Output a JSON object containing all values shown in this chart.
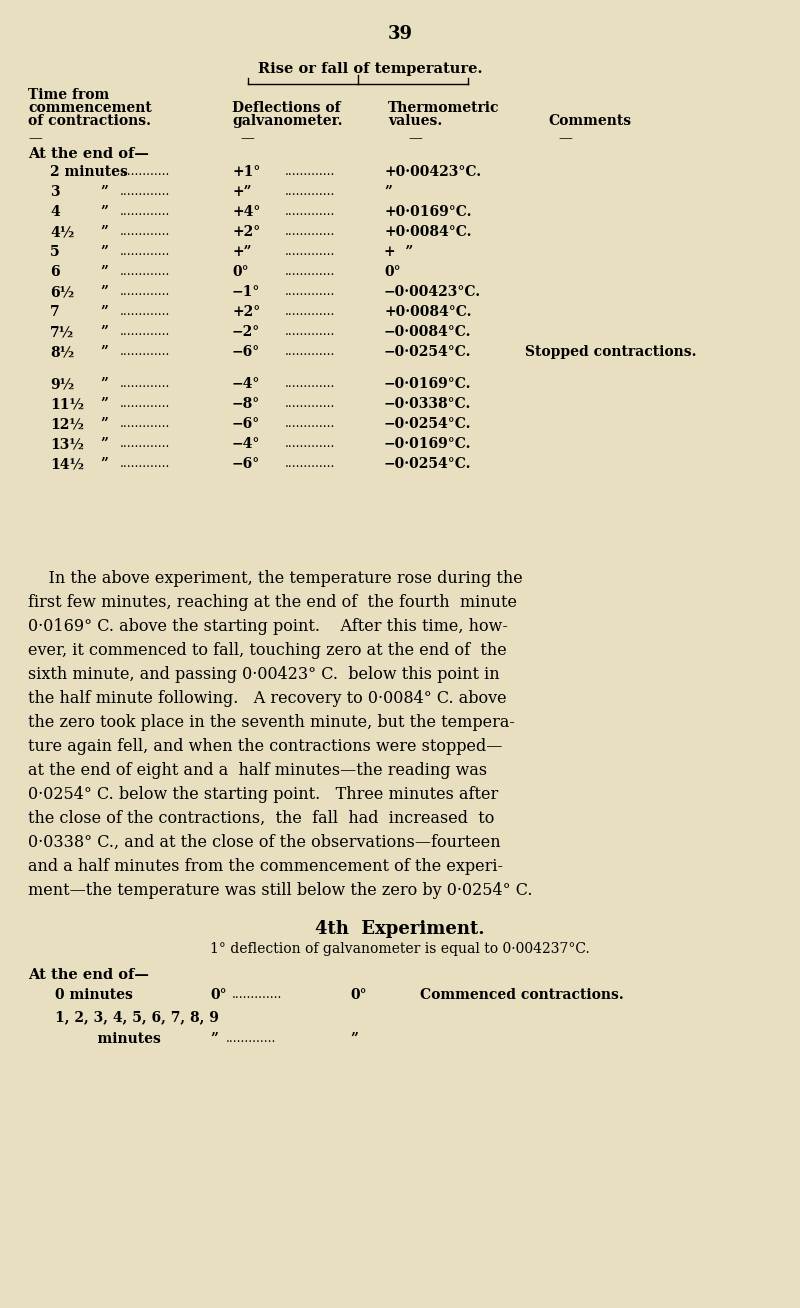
{
  "bg_color": "#e8dfc0",
  "page_number": "39",
  "title_rise_fall": "Rise or fall of temperature.",
  "col1_header_lines": [
    "Time from",
    "commencement",
    "of contractions."
  ],
  "col2_header_lines": [
    "Deflections of",
    "galvanometer."
  ],
  "col3_header_lines": [
    "Thermometric",
    "values."
  ],
  "col4_header": "Comments",
  "at_end_of": "At the end of—",
  "table_rows": [
    {
      "time": "2 minutes",
      "unit": "",
      "defl": "+1°",
      "thermo": "+0·00423°C.",
      "comment": ""
    },
    {
      "time": "3",
      "unit": "”",
      "defl": "+”",
      "thermo": "”",
      "comment": ""
    },
    {
      "time": "4",
      "unit": "”",
      "defl": "+4°",
      "thermo": "+0·0169°C.",
      "comment": ""
    },
    {
      "time": "4½",
      "unit": "”",
      "defl": "+2°",
      "thermo": "+0·0084°C.",
      "comment": ""
    },
    {
      "time": "5",
      "unit": "”",
      "defl": "+”",
      "thermo": "+  ”",
      "comment": ""
    },
    {
      "time": "6",
      "unit": "”",
      "defl": "0°",
      "thermo": "0°",
      "comment": ""
    },
    {
      "time": "6½",
      "unit": "”",
      "defl": "−1°",
      "thermo": "−0·00423°C.",
      "comment": ""
    },
    {
      "time": "7",
      "unit": "”",
      "defl": "+2°",
      "thermo": "+0·0084°C.",
      "comment": ""
    },
    {
      "time": "7½",
      "unit": "”",
      "defl": "−2°",
      "thermo": "−0·0084°C.",
      "comment": ""
    },
    {
      "time": "8½",
      "unit": "”",
      "defl": "−6°",
      "thermo": "−0·0254°C.",
      "comment": "Stopped contractions."
    },
    {
      "time": "9½",
      "unit": "”",
      "defl": "−4°",
      "thermo": "−0·0169°C.",
      "comment": "",
      "gap": true
    },
    {
      "time": "11½",
      "unit": "”",
      "defl": "−8°",
      "thermo": "−0·0338°C.",
      "comment": ""
    },
    {
      "time": "12½",
      "unit": "”",
      "defl": "−6°",
      "thermo": "−0·0254°C.",
      "comment": ""
    },
    {
      "time": "13½",
      "unit": "”",
      "defl": "−4°",
      "thermo": "−0·0169°C.",
      "comment": ""
    },
    {
      "time": "14½",
      "unit": "”",
      "defl": "−6°",
      "thermo": "−0·0254°C.",
      "comment": ""
    }
  ],
  "paragraph_lines": [
    "    In the above experiment, the temperature rose during the",
    "first few minutes, reaching at the end of  the fourth  minute",
    "0·0169° C. above the starting point.    After this time, how-",
    "ever, it commenced to fall, touching zero at the end of  the",
    "sixth minute, and passing 0·00423° C.  below this point in",
    "the half minute following.   A recovery to 0·0084° C. above",
    "the zero took place in the seventh minute, but the tempera-",
    "ture again fell, and when the contractions were stopped—",
    "at the end of eight and a  half minutes—the reading was",
    "0·0254° C. below the starting point.   Three minutes after",
    "the close of the contractions,  the  fall  had  increased  to",
    "0·0338° C., and at the close of the observations—fourteen",
    "and a half minutes from the commencement of the experi-",
    "ment—the temperature was still below the zero by 0·0254° C."
  ],
  "fourth_exp_title": "4th  Experiment.",
  "fourth_exp_subtitle": "1° deflection of galvanometer is equal to 0·004237°C.",
  "fourth_at_end": "At the end of—",
  "fourth_row1_time": "0 minutes",
  "fourth_row1_defl": "0°",
  "fourth_row1_val": "0°",
  "fourth_row1_comment": "Commenced contractions.",
  "fourth_row2_time": "1, 2, 3, 4, 5, 6, 7, 8, 9",
  "fourth_row3_indent": "    minutes ",
  "fourth_row3_defl": "”",
  "fourth_row3_val": "”",
  "dots": "................",
  "dots_long": ".................."
}
